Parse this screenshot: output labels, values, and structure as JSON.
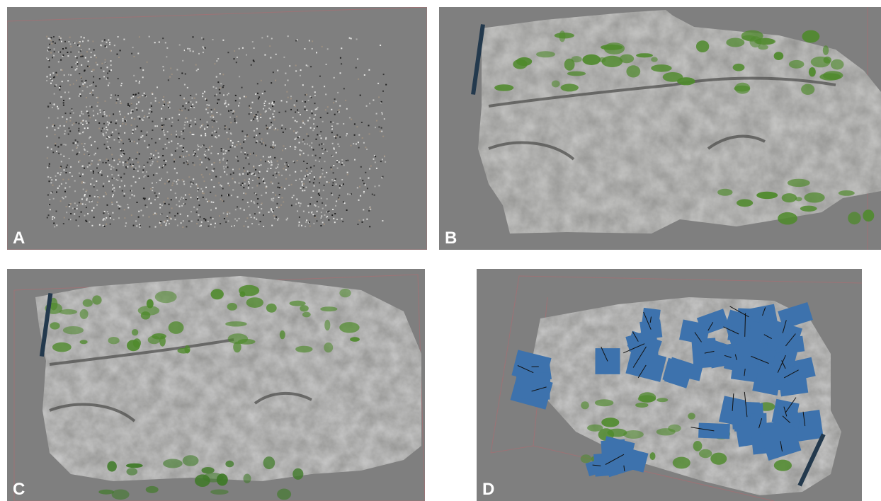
{
  "panels": {
    "a": {
      "label": "A",
      "view": "sparse-point-cloud"
    },
    "b": {
      "label": "B",
      "view": "textured-mesh"
    },
    "c": {
      "label": "C",
      "view": "dense-point-cloud"
    },
    "d": {
      "label": "D",
      "view": "mesh-with-camera-positions"
    }
  },
  "colors": {
    "viewport_bg": "#7f7f7f",
    "rock": "#9a9a98",
    "rock_dark": "#5e5e5c",
    "vegetation": "#4f8a2c",
    "camera_plane": "#3d72ad",
    "bounding_box": "#b06a70",
    "label": "#ffffff"
  }
}
